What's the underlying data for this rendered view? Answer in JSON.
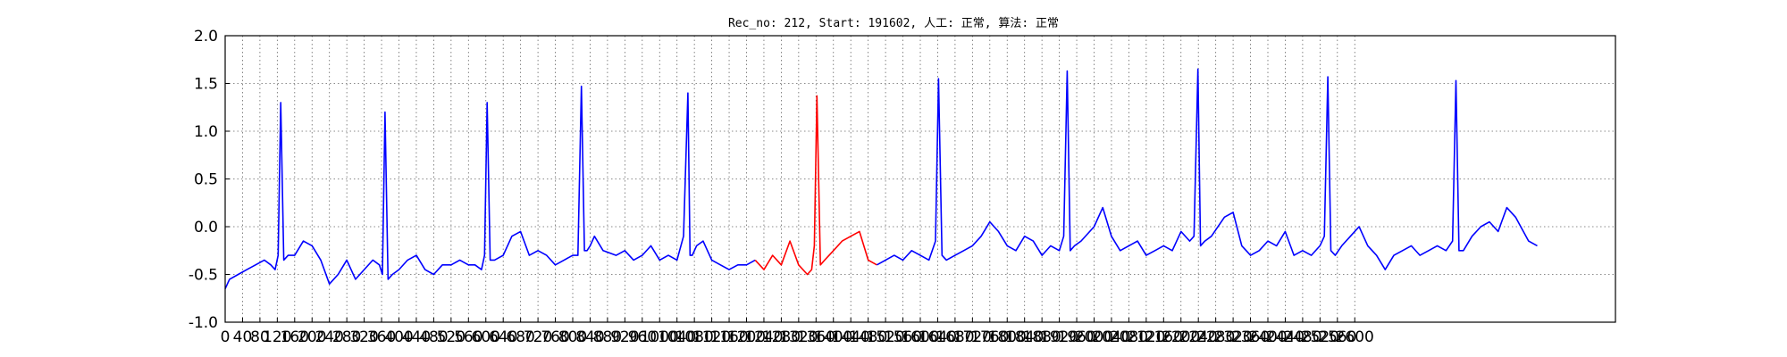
{
  "chart_data": {
    "type": "line",
    "title": "Rec_no: 212, Start: 191602, 人工: 正常, 算法: 正常",
    "xlabel": "",
    "ylabel": "",
    "xlim": [
      0,
      3200
    ],
    "ylim": [
      -1.0,
      2.0
    ],
    "grid": true,
    "legend": "none",
    "y_ticks": [
      "-1.0",
      "-0.5",
      "0.0",
      "0.5",
      "1.0",
      "1.5",
      "2.0"
    ],
    "x_ticks": [
      "0",
      "40",
      "80",
      "120",
      "160",
      "200",
      "240",
      "280",
      "320",
      "360",
      "400",
      "440",
      "480",
      "520",
      "560",
      "600",
      "640",
      "680",
      "720",
      "760",
      "800",
      "840",
      "880",
      "920",
      "960",
      "1000",
      "1040",
      "1080",
      "1120",
      "1160",
      "1200",
      "1240",
      "1280",
      "1320",
      "1360",
      "1400",
      "1440",
      "1480",
      "1520",
      "1560",
      "1600",
      "1640",
      "1680",
      "1720",
      "1760",
      "1800",
      "1840",
      "1880",
      "1920",
      "1960",
      "2000",
      "2040",
      "2080",
      "2120",
      "2160",
      "2200",
      "2240",
      "2280",
      "2320",
      "2360",
      "2400",
      "2440",
      "2480",
      "2520",
      "2560",
      "2600"
    ],
    "series": [
      {
        "color": "#0000ff",
        "x": [
          0,
          10,
          30,
          50,
          70,
          90,
          105,
          115,
          122,
          128,
          135,
          145,
          160,
          180,
          200,
          220,
          240,
          260,
          280,
          300,
          320,
          340,
          355,
          362,
          368,
          375,
          385,
          400,
          420,
          440,
          460,
          480,
          500,
          520,
          540,
          560,
          575,
          590,
          597,
          603,
          610,
          620,
          640,
          660,
          680,
          700,
          720,
          740,
          760,
          780,
          800,
          812,
          820,
          827,
          833,
          840,
          850,
          870,
          900,
          920,
          940,
          960,
          980,
          1000,
          1020,
          1040,
          1055,
          1065,
          1070,
          1075,
          1080,
          1085,
          1100,
          1120,
          1140,
          1160,
          1180,
          1200,
          1220
        ],
        "y": [
          -0.65,
          -0.55,
          -0.5,
          -0.45,
          -0.4,
          -0.35,
          -0.4,
          -0.45,
          -0.3,
          1.3,
          -0.35,
          -0.3,
          -0.3,
          -0.15,
          -0.2,
          -0.35,
          -0.6,
          -0.5,
          -0.35,
          -0.55,
          -0.45,
          -0.35,
          -0.4,
          -0.5,
          1.2,
          -0.55,
          -0.5,
          -0.45,
          -0.35,
          -0.3,
          -0.45,
          -0.5,
          -0.4,
          -0.4,
          -0.35,
          -0.4,
          -0.4,
          -0.45,
          -0.3,
          1.3,
          -0.35,
          -0.35,
          -0.3,
          -0.1,
          -0.05,
          -0.3,
          -0.25,
          -0.3,
          -0.4,
          -0.35,
          -0.3,
          -0.3,
          1.47,
          -0.25,
          -0.25,
          -0.2,
          -0.1,
          -0.25,
          -0.3,
          -0.25,
          -0.35,
          -0.3,
          -0.2,
          -0.35,
          -0.3,
          -0.35,
          -0.1,
          1.4,
          -0.3,
          -0.3,
          -0.25,
          -0.2,
          -0.15,
          -0.35,
          -0.4,
          -0.45,
          -0.4,
          -0.4,
          -0.35
        ]
      },
      {
        "color": "#ff0000",
        "x": [
          1220,
          1240,
          1260,
          1280,
          1300,
          1320,
          1340,
          1350,
          1356,
          1362,
          1370,
          1380,
          1400,
          1420,
          1440,
          1460,
          1480,
          1500
        ],
        "y": [
          -0.35,
          -0.45,
          -0.3,
          -0.4,
          -0.15,
          -0.4,
          -0.5,
          -0.45,
          -0.2,
          1.37,
          -0.4,
          -0.35,
          -0.25,
          -0.15,
          -0.1,
          -0.05,
          -0.35,
          -0.4
        ]
      },
      {
        "color": "#0000ff",
        "x": [
          1500,
          1520,
          1540,
          1560,
          1580,
          1600,
          1620,
          1635,
          1642,
          1650,
          1660,
          1680,
          1700,
          1720,
          1740,
          1760,
          1780,
          1800,
          1820,
          1840,
          1860,
          1880,
          1900,
          1920,
          1930,
          1938,
          1945,
          1955,
          1970,
          2000,
          2020,
          2040,
          2060,
          2080,
          2100,
          2120,
          2140,
          2160,
          2180,
          2200,
          2220,
          2230,
          2239,
          2245,
          2255,
          2270,
          2300,
          2320,
          2340,
          2360,
          2380,
          2400,
          2420,
          2440,
          2460,
          2480,
          2500,
          2520,
          2530,
          2538,
          2545,
          2555,
          2570,
          2590,
          2610,
          2630,
          2650,
          2670,
          2690,
          2710,
          2730,
          2750,
          2770,
          2790,
          2810,
          2825,
          2833,
          2840,
          2850,
          2870,
          2890,
          2910,
          2930,
          2950,
          2970,
          3000,
          3020
        ],
        "y": [
          -0.4,
          -0.35,
          -0.3,
          -0.35,
          -0.25,
          -0.3,
          -0.35,
          -0.15,
          1.55,
          -0.3,
          -0.35,
          -0.3,
          -0.25,
          -0.2,
          -0.1,
          0.05,
          -0.05,
          -0.2,
          -0.25,
          -0.1,
          -0.15,
          -0.3,
          -0.2,
          -0.25,
          -0.1,
          1.63,
          -0.25,
          -0.2,
          -0.15,
          0.0,
          0.2,
          -0.1,
          -0.25,
          -0.2,
          -0.15,
          -0.3,
          -0.25,
          -0.2,
          -0.25,
          -0.05,
          -0.15,
          -0.1,
          1.65,
          -0.2,
          -0.15,
          -0.1,
          0.1,
          0.15,
          -0.2,
          -0.3,
          -0.25,
          -0.15,
          -0.2,
          -0.05,
          -0.3,
          -0.25,
          -0.3,
          -0.2,
          -0.1,
          1.57,
          -0.25,
          -0.3,
          -0.2,
          -0.1,
          0.0,
          -0.2,
          -0.3,
          -0.45,
          -0.3,
          -0.25,
          -0.2,
          -0.3,
          -0.25,
          -0.2,
          -0.25,
          -0.15,
          1.53,
          -0.25,
          -0.25,
          -0.1,
          0.0,
          0.05,
          -0.05,
          0.2,
          0.1,
          -0.15,
          -0.2
        ]
      }
    ]
  }
}
